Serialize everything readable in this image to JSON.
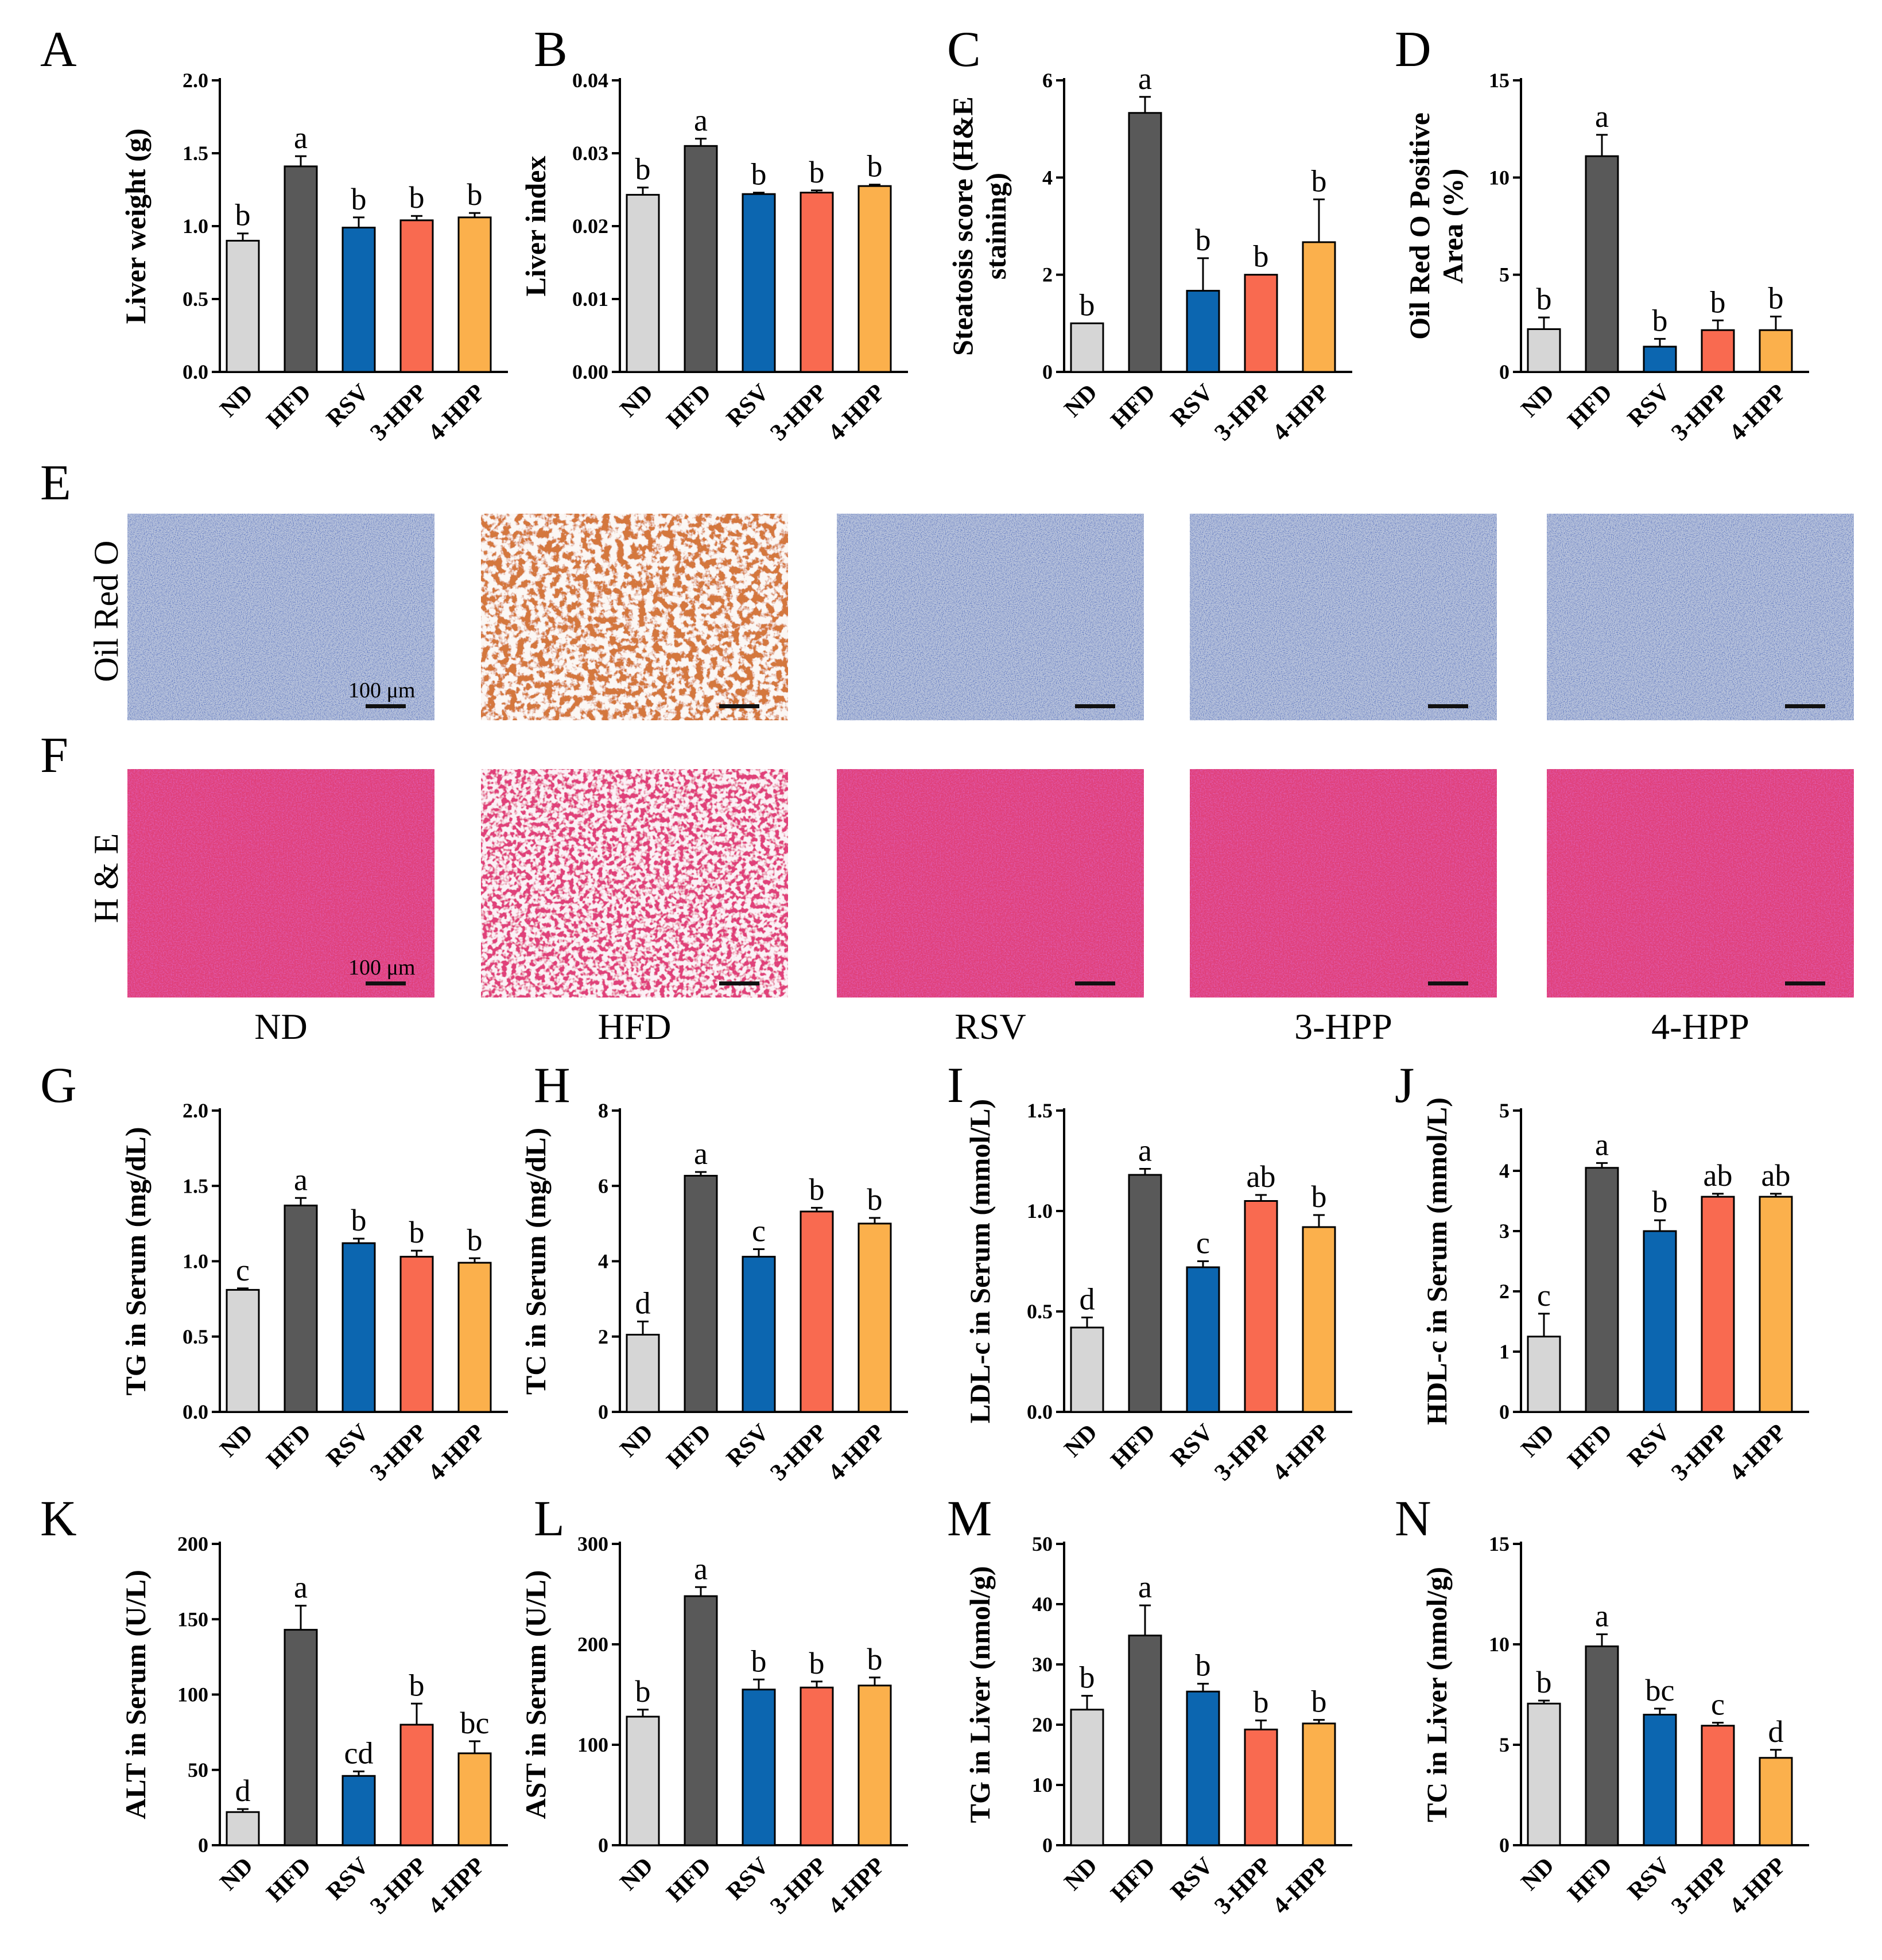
{
  "colors": {
    "ND": "#d6d6d6",
    "HFD": "#595959",
    "RSV": "#0c66b0",
    "3-HPP": "#f96a50",
    "4-HPP": "#fbb04c",
    "oil_red_base": "#b9c4dc",
    "oil_red_hfd": "#d4773c",
    "he_base": "#e0407a"
  },
  "microscopy": {
    "panel_E": "E",
    "panel_F": "F",
    "row_E_label": "Oil Red O",
    "row_F_label": "H & E",
    "scale_bar_label": "100 μm",
    "columns": [
      "ND",
      "HFD",
      "RSV",
      "3-HPP",
      "4-HPP"
    ]
  },
  "chart_data": [
    {
      "panel": "A",
      "type": "bar",
      "categories": [
        "ND",
        "HFD",
        "RSV",
        "3-HPP",
        "4-HPP"
      ],
      "ylabel": "Liver weight (g)",
      "ylim": [
        0,
        2.0
      ],
      "ticks": [
        "0.0",
        "0.5",
        "1.0",
        "1.5",
        "2.0"
      ],
      "values": [
        0.9,
        1.41,
        0.99,
        1.04,
        1.06
      ],
      "errors": [
        0.05,
        0.07,
        0.07,
        0.03,
        0.03
      ],
      "letters": [
        "b",
        "a",
        "b",
        "b",
        "b"
      ]
    },
    {
      "panel": "B",
      "type": "bar",
      "categories": [
        "ND",
        "HFD",
        "RSV",
        "3-HPP",
        "4-HPP"
      ],
      "ylabel": "Liver index",
      "ylim": [
        0,
        0.04
      ],
      "ticks": [
        "0.00",
        "0.01",
        "0.02",
        "0.03",
        "0.04"
      ],
      "values": [
        0.0243,
        0.031,
        0.0244,
        0.0246,
        0.0255
      ],
      "errors": [
        0.001,
        0.001,
        0.0002,
        0.0003,
        0.0002
      ],
      "letters": [
        "b",
        "a",
        "b",
        "b",
        "b"
      ]
    },
    {
      "panel": "C",
      "type": "bar",
      "categories": [
        "ND",
        "HFD",
        "RSV",
        "3-HPP",
        "4-HPP"
      ],
      "ylabel": "Steatosis score (H&E staining)",
      "ylabel_lines": [
        "Steatosis score (H&E",
        "staining)"
      ],
      "ylim": [
        0,
        6
      ],
      "ticks": [
        "0",
        "2",
        "4",
        "6"
      ],
      "values": [
        1.0,
        5.33,
        1.67,
        2.0,
        2.67
      ],
      "errors": [
        0,
        0.33,
        0.67,
        0,
        0.88
      ],
      "letters": [
        "b",
        "a",
        "b",
        "b",
        "b"
      ]
    },
    {
      "panel": "D",
      "type": "bar",
      "categories": [
        "ND",
        "HFD",
        "RSV",
        "3-HPP",
        "4-HPP"
      ],
      "ylabel": "Oil Red O Positive Area (%)",
      "ylabel_lines": [
        "Oil Red O Positive",
        "Area (%)"
      ],
      "ylim": [
        0,
        15
      ],
      "ticks": [
        "0",
        "5",
        "10",
        "15"
      ],
      "values": [
        2.2,
        11.1,
        1.3,
        2.15,
        2.15
      ],
      "errors": [
        0.6,
        1.1,
        0.4,
        0.5,
        0.7
      ],
      "letters": [
        "b",
        "a",
        "b",
        "b",
        "b"
      ]
    },
    {
      "panel": "G",
      "type": "bar",
      "categories": [
        "ND",
        "HFD",
        "RSV",
        "3-HPP",
        "4-HPP"
      ],
      "ylabel": "TG in Serum (mg/dL)",
      "ylim": [
        0,
        2.0
      ],
      "ticks": [
        "0.0",
        "0.5",
        "1.0",
        "1.5",
        "2.0"
      ],
      "values": [
        0.81,
        1.37,
        1.12,
        1.03,
        0.99
      ],
      "errors": [
        0.01,
        0.05,
        0.03,
        0.04,
        0.03
      ],
      "letters": [
        "c",
        "a",
        "b",
        "b",
        "b"
      ]
    },
    {
      "panel": "H",
      "type": "bar",
      "categories": [
        "ND",
        "HFD",
        "RSV",
        "3-HPP",
        "4-HPP"
      ],
      "ylabel": "TC in Serum (mg/dL)",
      "ylim": [
        0,
        8
      ],
      "ticks": [
        "0",
        "2",
        "4",
        "6",
        "8"
      ],
      "values": [
        2.05,
        6.27,
        4.12,
        5.32,
        5.0
      ],
      "errors": [
        0.35,
        0.1,
        0.2,
        0.1,
        0.15
      ],
      "letters": [
        "d",
        "a",
        "c",
        "b",
        "b"
      ]
    },
    {
      "panel": "I",
      "type": "bar",
      "categories": [
        "ND",
        "HFD",
        "RSV",
        "3-HPP",
        "4-HPP"
      ],
      "ylabel": "LDL-c in Serum (mmol/L)",
      "ylim": [
        0,
        1.5
      ],
      "ticks": [
        "0.0",
        "0.5",
        "1.0",
        "1.5"
      ],
      "values": [
        0.42,
        1.18,
        0.72,
        1.05,
        0.92
      ],
      "errors": [
        0.05,
        0.03,
        0.03,
        0.03,
        0.06
      ],
      "letters": [
        "d",
        "a",
        "c",
        "ab",
        "b"
      ]
    },
    {
      "panel": "J",
      "type": "bar",
      "categories": [
        "ND",
        "HFD",
        "RSV",
        "3-HPP",
        "4-HPP"
      ],
      "ylabel": "HDL-c in Serum (mmol/L)",
      "ylim": [
        0,
        5
      ],
      "ticks": [
        "0",
        "1",
        "2",
        "3",
        "4",
        "5"
      ],
      "values": [
        1.25,
        4.05,
        3.0,
        3.57,
        3.57
      ],
      "errors": [
        0.38,
        0.08,
        0.18,
        0.05,
        0.05
      ],
      "letters": [
        "c",
        "a",
        "b",
        "ab",
        "ab"
      ]
    },
    {
      "panel": "K",
      "type": "bar",
      "categories": [
        "ND",
        "HFD",
        "RSV",
        "3-HPP",
        "4-HPP"
      ],
      "ylabel": "ALT in Serum (U/L)",
      "ylim": [
        0,
        200
      ],
      "ticks": [
        "0",
        "50",
        "100",
        "150",
        "200"
      ],
      "values": [
        22,
        143,
        46,
        80,
        61
      ],
      "errors": [
        2,
        16,
        3,
        14,
        8
      ],
      "letters": [
        "d",
        "a",
        "cd",
        "b",
        "bc"
      ]
    },
    {
      "panel": "L",
      "type": "bar",
      "categories": [
        "ND",
        "HFD",
        "RSV",
        "3-HPP",
        "4-HPP"
      ],
      "ylabel": "AST in Serum (U/L)",
      "ylim": [
        0,
        300
      ],
      "ticks": [
        "0",
        "100",
        "200",
        "300"
      ],
      "values": [
        128,
        248,
        155,
        157,
        159
      ],
      "errors": [
        7,
        9,
        10,
        6,
        8
      ],
      "letters": [
        "b",
        "a",
        "b",
        "b",
        "b"
      ]
    },
    {
      "panel": "M",
      "type": "bar",
      "categories": [
        "ND",
        "HFD",
        "RSV",
        "3-HPP",
        "4-HPP"
      ],
      "ylabel": "TG in Liver (nmol/g)",
      "ylim": [
        0,
        50
      ],
      "ticks": [
        "0",
        "10",
        "20",
        "30",
        "40",
        "50"
      ],
      "values": [
        22.5,
        34.8,
        25.5,
        19.2,
        20.2
      ],
      "errors": [
        2.3,
        5.0,
        1.3,
        1.5,
        0.6
      ],
      "letters": [
        "b",
        "a",
        "b",
        "b",
        "b"
      ]
    },
    {
      "panel": "N",
      "type": "bar",
      "categories": [
        "ND",
        "HFD",
        "RSV",
        "3-HPP",
        "4-HPP"
      ],
      "ylabel": "TC in Liver (nmol/g)",
      "ylim": [
        0,
        15
      ],
      "ticks": [
        "0",
        "5",
        "10",
        "15"
      ],
      "values": [
        7.05,
        9.9,
        6.5,
        5.95,
        4.35
      ],
      "errors": [
        0.15,
        0.6,
        0.3,
        0.15,
        0.4
      ],
      "letters": [
        "b",
        "a",
        "bc",
        "c",
        "d"
      ]
    }
  ]
}
